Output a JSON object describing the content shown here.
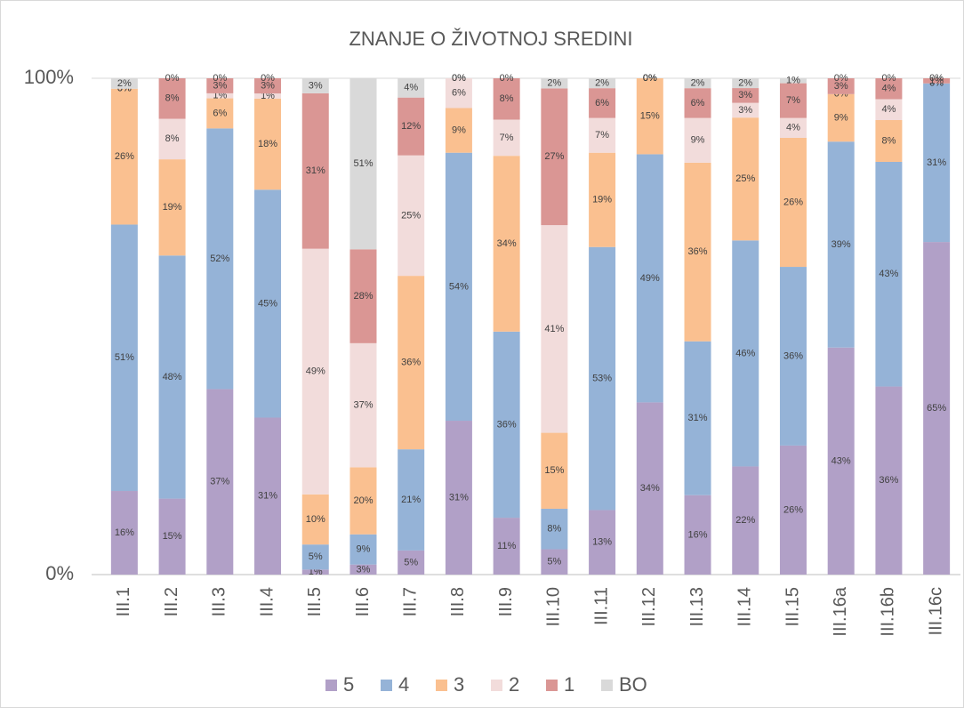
{
  "chart_data": {
    "type": "bar",
    "stacking": "percent",
    "title": "ZNANJE O ŽIVOTNOJ SREDINI",
    "categories": [
      "III.1",
      "III.2",
      "III.3",
      "III.4",
      "III.5",
      "III.6",
      "III.7",
      "III.8",
      "III.9",
      "III.10",
      "III.11",
      "III.12",
      "III.13",
      "III.14",
      "III.15",
      "III.16a",
      "III.16b",
      "III.16c"
    ],
    "ylim": [
      0,
      100
    ],
    "yticks": [
      {
        "value": 0,
        "label": "0%"
      },
      {
        "value": 100,
        "label": "100%"
      }
    ],
    "legend": "bottom",
    "series": [
      {
        "name": "5",
        "color": "#b1a0c7",
        "values": [
          16,
          15,
          37,
          31,
          1,
          3,
          5,
          31,
          11,
          5,
          13,
          34,
          16,
          22,
          26,
          43,
          36,
          65
        ],
        "value_labels": [
          "16%",
          "15%",
          "37%",
          "31%",
          "1%",
          "3%",
          "5%",
          "31%",
          "11%",
          "5%",
          "13%",
          "34%",
          "16%",
          "22%",
          "26%",
          "43%",
          "36%",
          "65%"
        ]
      },
      {
        "name": "4",
        "color": "#95b3d7",
        "values": [
          51,
          48,
          52,
          45,
          5,
          9,
          21,
          54,
          36,
          8,
          53,
          49,
          31,
          46,
          36,
          39,
          43,
          31
        ],
        "value_labels": [
          "51%",
          "48%",
          "52%",
          "45%",
          "5%",
          "9%",
          "21%",
          "54%",
          "36%",
          "8%",
          "53%",
          "49%",
          "31%",
          "46%",
          "36%",
          "39%",
          "43%",
          "31%"
        ]
      },
      {
        "name": "3",
        "color": "#fac090",
        "values": [
          26,
          19,
          6,
          18,
          10,
          20,
          36,
          9,
          34,
          15,
          19,
          15,
          36,
          25,
          26,
          9,
          8,
          0
        ],
        "value_labels": [
          "26%",
          "19%",
          "6%",
          "18%",
          "10%",
          "20%",
          "36%",
          "9%",
          "34%",
          "15%",
          "19%",
          "15%",
          "36%",
          "25%",
          "26%",
          "9%",
          "8%",
          "0%"
        ]
      },
      {
        "name": "2",
        "color": "#f2dcdb",
        "values": [
          0,
          8,
          1,
          1,
          49,
          37,
          25,
          6,
          7,
          41,
          7,
          0,
          9,
          3,
          4,
          0,
          4,
          0
        ],
        "value_labels": [
          "0%",
          "8%",
          "1%",
          "1%",
          "49%",
          "37%",
          "25%",
          "6%",
          "7%",
          "41%",
          "7%",
          "0%",
          "9%",
          "3%",
          "4%",
          "0%",
          "4%",
          "0%"
        ]
      },
      {
        "name": "1",
        "color": "#da9694",
        "values": [
          0,
          8,
          3,
          3,
          31,
          28,
          12,
          0,
          8,
          27,
          6,
          0,
          6,
          3,
          7,
          3,
          4,
          1
        ],
        "value_labels": [
          "0%",
          "8%",
          "3%",
          "3%",
          "31%",
          "28%",
          "12%",
          "0%",
          "8%",
          "27%",
          "6%",
          "0%",
          "6%",
          "3%",
          "7%",
          "3%",
          "4%",
          "1%"
        ]
      },
      {
        "name": "BO",
        "color": "#d9d9d9",
        "values": [
          2,
          0,
          0,
          0,
          3,
          51,
          4,
          0,
          0,
          2,
          2,
          0,
          2,
          2,
          1,
          0,
          0,
          0
        ],
        "value_labels": [
          "2%",
          "0%",
          "0%",
          "0%",
          "3%",
          "51%",
          "4%",
          "0%",
          "0%",
          "2%",
          "2%",
          "0%",
          "2%",
          "2%",
          "1%",
          "0%",
          "0%",
          "0%"
        ]
      }
    ]
  }
}
